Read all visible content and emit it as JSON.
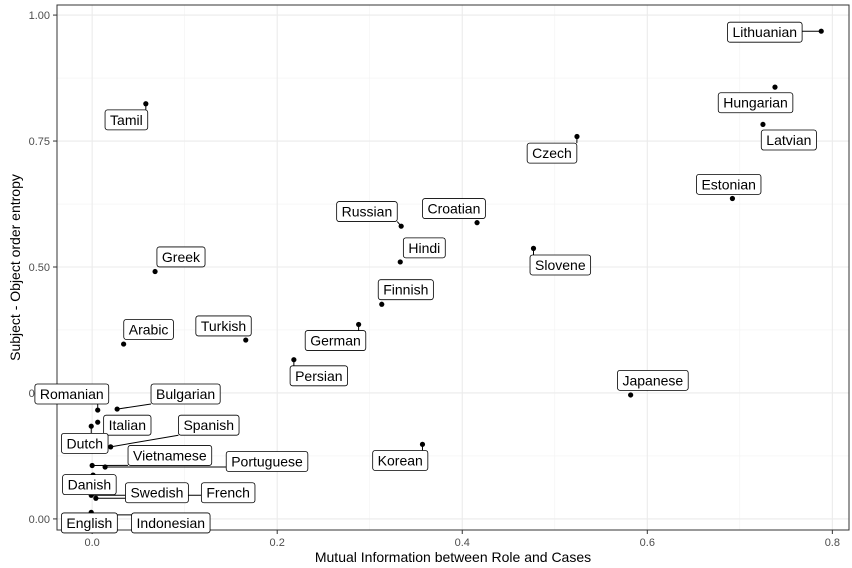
{
  "chart_data": {
    "type": "scatter",
    "xlabel": "Mutual Information between Role and Cases",
    "ylabel": "Subject - Object order entropy",
    "xlim": [
      -0.038,
      0.818
    ],
    "ylim": [
      -0.022,
      1.02
    ],
    "xticks": [
      0.0,
      0.2,
      0.4,
      0.6,
      0.8
    ],
    "xtick_labels": [
      "0.0",
      "0.2",
      "0.4",
      "0.6",
      "0.8"
    ],
    "yticks": [
      0.0,
      0.25,
      0.5,
      0.75,
      1.0
    ],
    "ytick_labels": [
      "0.00",
      "0.25",
      "0.50",
      "0.75",
      "1.00"
    ],
    "grid": true,
    "legend": "none",
    "point_color": "#000000",
    "points": [
      {
        "label": "Lithuanian",
        "x": 0.788,
        "y": 0.968,
        "lx": 0.727,
        "ly": 0.966
      },
      {
        "label": "Hungarian",
        "x": 0.738,
        "y": 0.857,
        "lx": 0.717,
        "ly": 0.826
      },
      {
        "label": "Latvian",
        "x": 0.725,
        "y": 0.783,
        "lx": 0.753,
        "ly": 0.752
      },
      {
        "label": "Tamil",
        "x": 0.058,
        "y": 0.824,
        "lx": 0.037,
        "ly": 0.792
      },
      {
        "label": "Czech",
        "x": 0.524,
        "y": 0.759,
        "lx": 0.497,
        "ly": 0.726
      },
      {
        "label": "Estonian",
        "x": 0.692,
        "y": 0.636,
        "lx": 0.688,
        "ly": 0.664
      },
      {
        "label": "Russian",
        "x": 0.334,
        "y": 0.581,
        "lx": 0.297,
        "ly": 0.61
      },
      {
        "label": "Croatian",
        "x": 0.416,
        "y": 0.588,
        "lx": 0.391,
        "ly": 0.616
      },
      {
        "label": "Hindi",
        "x": 0.333,
        "y": 0.51,
        "lx": 0.359,
        "ly": 0.538
      },
      {
        "label": "Greek",
        "x": 0.068,
        "y": 0.491,
        "lx": 0.096,
        "ly": 0.52
      },
      {
        "label": "Slovene",
        "x": 0.477,
        "y": 0.537,
        "lx": 0.506,
        "ly": 0.504
      },
      {
        "label": "Finnish",
        "x": 0.313,
        "y": 0.426,
        "lx": 0.339,
        "ly": 0.455
      },
      {
        "label": "Arabic",
        "x": 0.034,
        "y": 0.347,
        "lx": 0.061,
        "ly": 0.376
      },
      {
        "label": "Turkish",
        "x": 0.166,
        "y": 0.355,
        "lx": 0.142,
        "ly": 0.383
      },
      {
        "label": "German",
        "x": 0.288,
        "y": 0.386,
        "lx": 0.263,
        "ly": 0.354
      },
      {
        "label": "Persian",
        "x": 0.218,
        "y": 0.316,
        "lx": 0.245,
        "ly": 0.284
      },
      {
        "label": "Japanese",
        "x": 0.582,
        "y": 0.246,
        "lx": 0.606,
        "ly": 0.275
      },
      {
        "label": "Romanian",
        "x": 0.006,
        "y": 0.216,
        "lx": -0.022,
        "ly": 0.248
      },
      {
        "label": "Bulgarian",
        "x": 0.027,
        "y": 0.218,
        "lx": 0.101,
        "ly": 0.248
      },
      {
        "label": "Italian",
        "x": 0.006,
        "y": 0.192,
        "lx": 0.038,
        "ly": 0.186
      },
      {
        "label": "Spanish",
        "x": 0.02,
        "y": 0.143,
        "lx": 0.126,
        "ly": 0.186
      },
      {
        "label": "Dutch",
        "x": -0.001,
        "y": 0.184,
        "lx": -0.008,
        "ly": 0.15
      },
      {
        "label": "Korean",
        "x": 0.357,
        "y": 0.148,
        "lx": 0.333,
        "ly": 0.116
      },
      {
        "label": "Vietnamese",
        "x": 0.0,
        "y": 0.106,
        "lx": 0.084,
        "ly": 0.126
      },
      {
        "label": "Portuguese",
        "x": 0.014,
        "y": 0.103,
        "lx": 0.189,
        "ly": 0.114
      },
      {
        "label": "Danish",
        "x": 0.001,
        "y": 0.087,
        "lx": -0.003,
        "ly": 0.068
      },
      {
        "label": "Swedish",
        "x": 0.004,
        "y": 0.041,
        "lx": 0.07,
        "ly": 0.052
      },
      {
        "label": "French",
        "x": -0.001,
        "y": 0.047,
        "lx": 0.147,
        "ly": 0.052
      },
      {
        "label": "English",
        "x": -0.001,
        "y": 0.013,
        "lx": -0.003,
        "ly": -0.008
      },
      {
        "label": "Indonesian",
        "x": 0.0,
        "y": 0.008,
        "lx": 0.085,
        "ly": -0.008
      }
    ]
  }
}
